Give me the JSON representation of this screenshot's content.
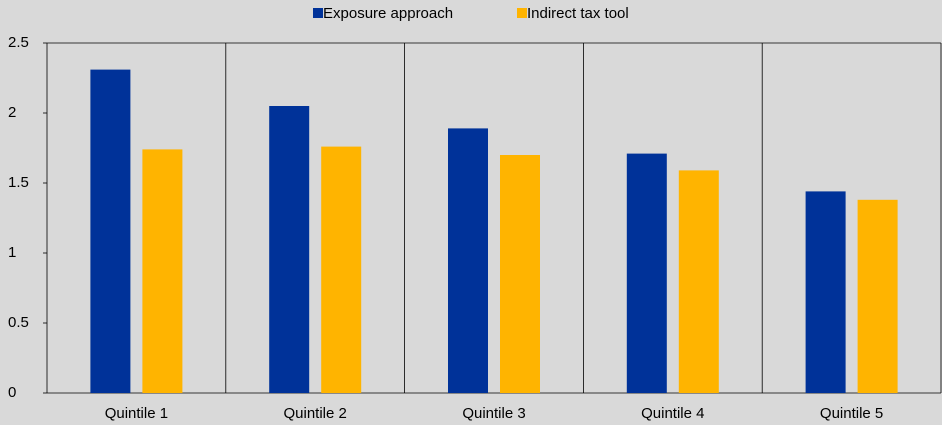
{
  "chart_data": {
    "type": "bar",
    "categories": [
      "Quintile 1",
      "Quintile 2",
      "Quintile 3",
      "Quintile 4",
      "Quintile 5"
    ],
    "series": [
      {
        "name": "Exposure approach",
        "color": "#003299",
        "values": [
          2.31,
          2.05,
          1.89,
          1.71,
          1.44
        ]
      },
      {
        "name": "Indirect tax tool",
        "color": "#ffb400",
        "values": [
          1.74,
          1.76,
          1.7,
          1.59,
          1.38
        ]
      }
    ],
    "ylim": [
      0,
      2.5
    ],
    "yticks": [
      0,
      0.5,
      1,
      1.5,
      2,
      2.5
    ],
    "legend": "top"
  }
}
